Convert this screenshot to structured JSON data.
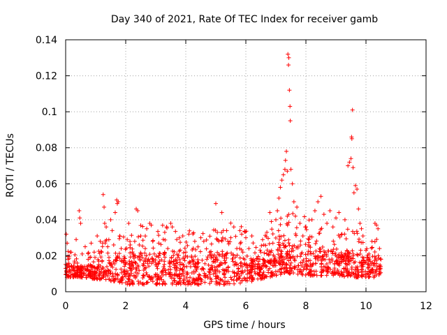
{
  "chart_data": {
    "type": "scatter",
    "title": "Day 340 of 2021, Rate Of TEC Index for receiver gamb",
    "xlabel": "GPS time / hours",
    "ylabel": "ROTI / TECUs",
    "xlim": [
      0,
      12
    ],
    "ylim": [
      0,
      0.14
    ],
    "x_ticks": [
      0,
      2,
      4,
      6,
      8,
      10,
      12
    ],
    "x_tick_labels": [
      "0",
      "2",
      "4",
      "6",
      "8",
      "10",
      "12"
    ],
    "y_ticks": [
      0,
      0.02,
      0.04,
      0.06,
      0.08,
      0.1,
      0.12,
      0.14
    ],
    "y_tick_labels": [
      "0",
      "0.02",
      "0.04",
      "0.06",
      "0.08",
      "0.1",
      "0.12",
      "0.14"
    ],
    "grid": true,
    "marker": "+",
    "color": "#ff0000",
    "series": [
      {
        "name": "ROTI",
        "points": [
          [
            0.0,
            0.013
          ],
          [
            0.02,
            0.032
          ],
          [
            0.05,
            0.027
          ],
          [
            0.08,
            0.018
          ],
          [
            0.12,
            0.011
          ],
          [
            0.15,
            0.022
          ],
          [
            0.2,
            0.014
          ],
          [
            0.25,
            0.009
          ],
          [
            0.3,
            0.016
          ],
          [
            0.35,
            0.029
          ],
          [
            0.4,
            0.012
          ],
          [
            0.45,
            0.045
          ],
          [
            0.47,
            0.041
          ],
          [
            0.5,
            0.038
          ],
          [
            0.55,
            0.021
          ],
          [
            0.6,
            0.013
          ],
          [
            0.65,
            0.025
          ],
          [
            0.7,
            0.012
          ],
          [
            0.75,
            0.018
          ],
          [
            0.8,
            0.009
          ],
          [
            0.85,
            0.027
          ],
          [
            0.9,
            0.014
          ],
          [
            0.95,
            0.022
          ],
          [
            1.0,
            0.01
          ],
          [
            1.05,
            0.031
          ],
          [
            1.1,
            0.017
          ],
          [
            1.15,
            0.028
          ],
          [
            1.2,
            0.022
          ],
          [
            1.25,
            0.054
          ],
          [
            1.28,
            0.047
          ],
          [
            1.3,
            0.038
          ],
          [
            1.35,
            0.036
          ],
          [
            1.4,
            0.025
          ],
          [
            1.45,
            0.016
          ],
          [
            1.5,
            0.04
          ],
          [
            1.55,
            0.034
          ],
          [
            1.6,
            0.026
          ],
          [
            1.65,
            0.044
          ],
          [
            1.7,
            0.051
          ],
          [
            1.72,
            0.049
          ],
          [
            1.75,
            0.05
          ],
          [
            1.8,
            0.031
          ],
          [
            1.85,
            0.024
          ],
          [
            1.9,
            0.007
          ],
          [
            1.95,
            0.011
          ],
          [
            2.0,
            0.005
          ],
          [
            2.05,
            0.029
          ],
          [
            2.1,
            0.038
          ],
          [
            2.15,
            0.026
          ],
          [
            2.2,
            0.015
          ],
          [
            2.25,
            0.021
          ],
          [
            2.3,
            0.028
          ],
          [
            2.35,
            0.046
          ],
          [
            2.4,
            0.045
          ],
          [
            2.45,
            0.026
          ],
          [
            2.5,
            0.031
          ],
          [
            2.55,
            0.019
          ],
          [
            2.6,
            0.012
          ],
          [
            2.65,
            0.024
          ],
          [
            2.7,
            0.035
          ],
          [
            2.75,
            0.018
          ],
          [
            2.8,
            0.038
          ],
          [
            2.85,
            0.037
          ],
          [
            2.9,
            0.028
          ],
          [
            2.95,
            0.021
          ],
          [
            3.0,
            0.016
          ],
          [
            3.1,
            0.027
          ],
          [
            3.2,
            0.011
          ],
          [
            3.3,
            0.033
          ],
          [
            3.4,
            0.024
          ],
          [
            3.5,
            0.038
          ],
          [
            3.55,
            0.036
          ],
          [
            3.6,
            0.017
          ],
          [
            3.7,
            0.029
          ],
          [
            3.8,
            0.012
          ],
          [
            3.9,
            0.031
          ],
          [
            4.0,
            0.022
          ],
          [
            4.1,
            0.032
          ],
          [
            4.2,
            0.019
          ],
          [
            4.3,
            0.028
          ],
          [
            4.4,
            0.014
          ],
          [
            4.5,
            0.03
          ],
          [
            4.6,
            0.028
          ],
          [
            4.7,
            0.018
          ],
          [
            4.8,
            0.022
          ],
          [
            4.9,
            0.012
          ],
          [
            5.0,
            0.049
          ],
          [
            5.05,
            0.033
          ],
          [
            5.1,
            0.028
          ],
          [
            5.2,
            0.044
          ],
          [
            5.25,
            0.034
          ],
          [
            5.3,
            0.02
          ],
          [
            5.4,
            0.028
          ],
          [
            5.5,
            0.03
          ],
          [
            5.6,
            0.036
          ],
          [
            5.7,
            0.024
          ],
          [
            5.8,
            0.034
          ],
          [
            5.9,
            0.022
          ],
          [
            6.0,
            0.03
          ],
          [
            6.1,
            0.024
          ],
          [
            6.2,
            0.031
          ],
          [
            6.3,
            0.014
          ],
          [
            6.5,
            0.022
          ],
          [
            6.6,
            0.026
          ],
          [
            6.7,
            0.033
          ],
          [
            6.8,
            0.044
          ],
          [
            6.85,
            0.039
          ],
          [
            6.9,
            0.027
          ],
          [
            7.0,
            0.04
          ],
          [
            7.05,
            0.045
          ],
          [
            7.1,
            0.052
          ],
          [
            7.15,
            0.058
          ],
          [
            7.2,
            0.062
          ],
          [
            7.25,
            0.065
          ],
          [
            7.3,
            0.068
          ],
          [
            7.32,
            0.073
          ],
          [
            7.35,
            0.078
          ],
          [
            7.38,
            0.067
          ],
          [
            7.4,
            0.132
          ],
          [
            7.42,
            0.126
          ],
          [
            7.43,
            0.13
          ],
          [
            7.45,
            0.112
          ],
          [
            7.47,
            0.103
          ],
          [
            7.48,
            0.095
          ],
          [
            7.5,
            0.068
          ],
          [
            7.55,
            0.06
          ],
          [
            7.6,
            0.05
          ],
          [
            7.65,
            0.042
          ],
          [
            7.7,
            0.047
          ],
          [
            7.8,
            0.038
          ],
          [
            7.9,
            0.031
          ],
          [
            8.0,
            0.036
          ],
          [
            8.1,
            0.029
          ],
          [
            8.2,
            0.04
          ],
          [
            8.3,
            0.045
          ],
          [
            8.4,
            0.05
          ],
          [
            8.5,
            0.053
          ],
          [
            8.6,
            0.043
          ],
          [
            8.7,
            0.038
          ],
          [
            8.8,
            0.045
          ],
          [
            8.9,
            0.036
          ],
          [
            9.0,
            0.041
          ],
          [
            9.1,
            0.044
          ],
          [
            9.2,
            0.032
          ],
          [
            9.3,
            0.04
          ],
          [
            9.4,
            0.07
          ],
          [
            9.45,
            0.072
          ],
          [
            9.5,
            0.074
          ],
          [
            9.52,
            0.086
          ],
          [
            9.53,
            0.085
          ],
          [
            9.55,
            0.101
          ],
          [
            9.57,
            0.069
          ],
          [
            9.6,
            0.055
          ],
          [
            9.65,
            0.059
          ],
          [
            9.7,
            0.057
          ],
          [
            9.75,
            0.046
          ],
          [
            9.8,
            0.038
          ],
          [
            9.85,
            0.035
          ],
          [
            9.9,
            0.031
          ],
          [
            10.0,
            0.023
          ],
          [
            10.1,
            0.021
          ],
          [
            10.2,
            0.028
          ],
          [
            10.3,
            0.038
          ],
          [
            10.35,
            0.037
          ],
          [
            10.4,
            0.035
          ],
          [
            10.45,
            0.024
          ],
          [
            10.5,
            0.018
          ]
        ]
      }
    ],
    "band": {
      "description": "dense ROTI scatter baseline by hour",
      "hours": [
        0,
        0.5,
        1,
        1.5,
        2,
        2.5,
        3,
        3.5,
        4,
        4.5,
        5,
        5.5,
        6,
        6.5,
        7,
        7.5,
        8,
        8.5,
        9,
        9.5,
        10,
        10.5
      ],
      "low": [
        0.008,
        0.008,
        0.007,
        0.006,
        0.004,
        0.004,
        0.004,
        0.004,
        0.004,
        0.004,
        0.004,
        0.004,
        0.005,
        0.007,
        0.009,
        0.01,
        0.009,
        0.009,
        0.009,
        0.008,
        0.008,
        0.008
      ],
      "high": [
        0.016,
        0.015,
        0.015,
        0.02,
        0.019,
        0.022,
        0.021,
        0.023,
        0.02,
        0.02,
        0.021,
        0.022,
        0.021,
        0.019,
        0.025,
        0.028,
        0.027,
        0.024,
        0.022,
        0.023,
        0.021,
        0.019
      ]
    }
  }
}
